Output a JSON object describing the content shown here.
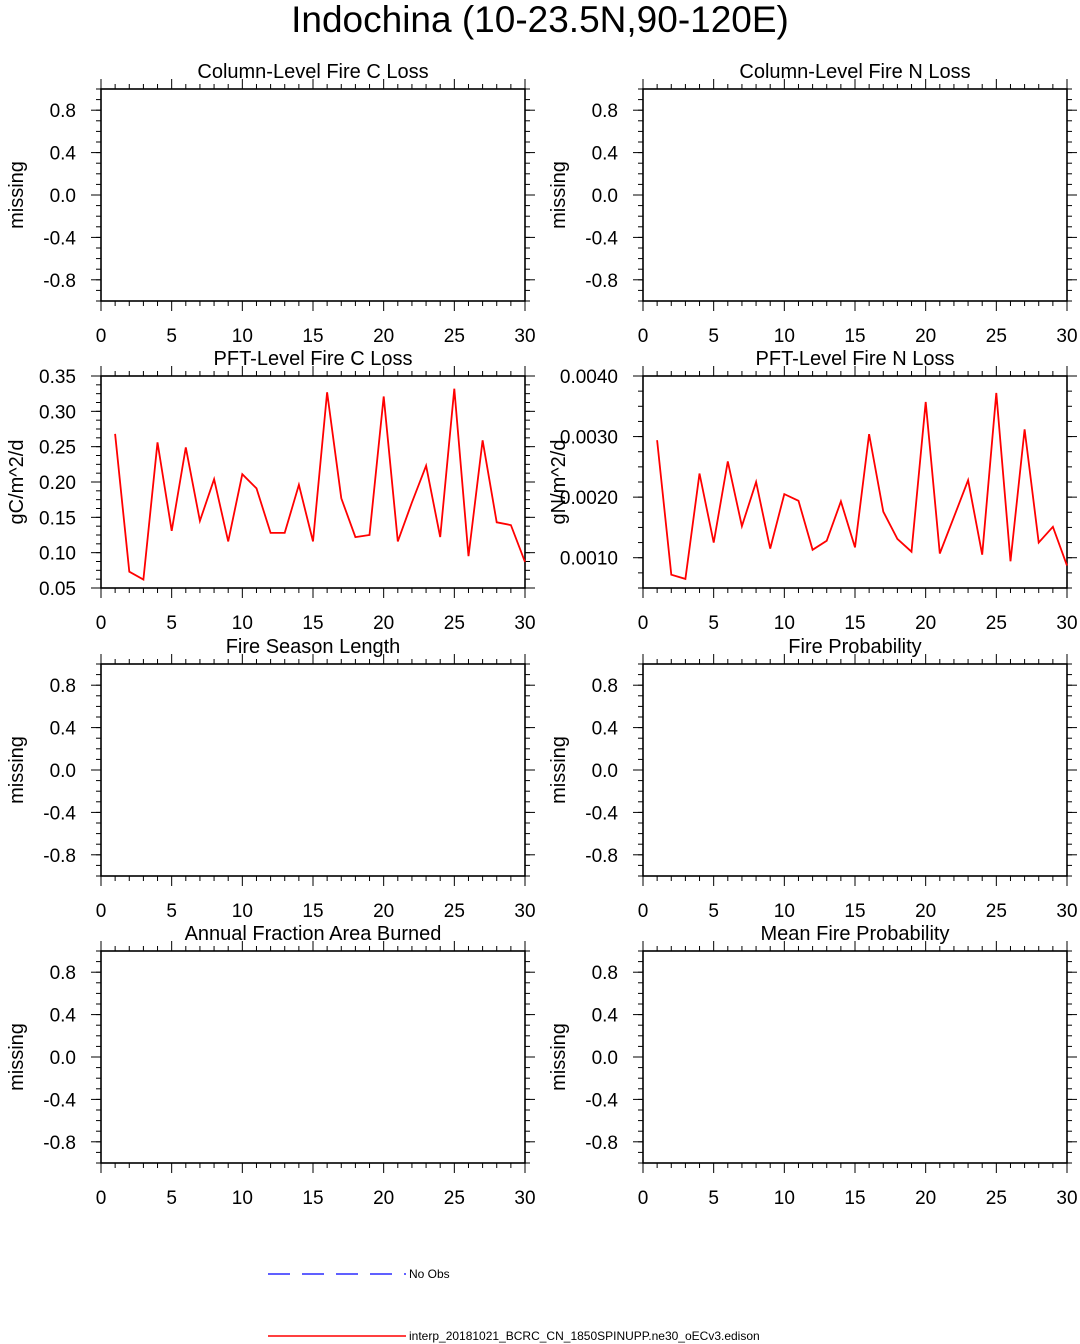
{
  "figure": {
    "title": "Indochina (10-23.5N,90-120E)"
  },
  "chart_data": [
    {
      "type": "line",
      "title": "Column-Level Fire C Loss",
      "ylabel": "missing",
      "xlim": [
        0,
        30
      ],
      "ylim": [
        -1,
        1
      ],
      "xticks": [
        0,
        5,
        10,
        15,
        20,
        25,
        30
      ],
      "xtick_labels": [
        "0",
        "5",
        "10",
        "15",
        "20",
        "25",
        "30"
      ],
      "yticks": [
        0.8,
        0.4,
        0.0,
        -0.4,
        -0.8
      ],
      "ytick_labels": [
        "0.8",
        "0.4",
        "0.0",
        "-0.4",
        "-0.8"
      ],
      "series": []
    },
    {
      "type": "line",
      "title": "Column-Level Fire N Loss",
      "ylabel": "missing",
      "xlim": [
        0,
        30
      ],
      "ylim": [
        -1,
        1
      ],
      "xticks": [
        0,
        5,
        10,
        15,
        20,
        25,
        30
      ],
      "xtick_labels": [
        "0",
        "5",
        "10",
        "15",
        "20",
        "25",
        "30"
      ],
      "yticks": [
        0.8,
        0.4,
        0.0,
        -0.4,
        -0.8
      ],
      "ytick_labels": [
        "0.8",
        "0.4",
        "0.0",
        "-0.4",
        "-0.8"
      ],
      "series": []
    },
    {
      "type": "line",
      "title": "PFT-Level Fire C Loss",
      "ylabel": "gC/m^2/d",
      "xlim": [
        0,
        30
      ],
      "ylim": [
        0.05,
        0.35
      ],
      "xticks": [
        0,
        5,
        10,
        15,
        20,
        25,
        30
      ],
      "xtick_labels": [
        "0",
        "5",
        "10",
        "15",
        "20",
        "25",
        "30"
      ],
      "yticks": [
        0.35,
        0.3,
        0.25,
        0.2,
        0.15,
        0.1,
        0.05
      ],
      "ytick_labels": [
        "0.35",
        "0.30",
        "0.25",
        "0.20",
        "0.15",
        "0.10",
        "0.05"
      ],
      "series": [
        {
          "color": "#ff0000",
          "x": [
            1,
            2,
            3,
            4,
            5,
            6,
            7,
            8,
            9,
            10,
            11,
            12,
            13,
            14,
            15,
            16,
            17,
            18,
            19,
            20,
            21,
            22,
            23,
            24,
            25,
            26,
            27,
            28,
            29,
            30
          ],
          "values": [
            0.268,
            0.073,
            0.062,
            0.256,
            0.131,
            0.249,
            0.145,
            0.204,
            0.116,
            0.211,
            0.191,
            0.128,
            0.128,
            0.196,
            0.116,
            0.327,
            0.177,
            0.122,
            0.125,
            0.321,
            0.116,
            0.171,
            0.223,
            0.122,
            0.332,
            0.095,
            0.259,
            0.143,
            0.139,
            0.087
          ]
        }
      ]
    },
    {
      "type": "line",
      "title": "PFT-Level Fire N Loss",
      "ylabel": "gN/m^2/d",
      "xlim": [
        0,
        30
      ],
      "ylim": [
        0.0005,
        0.004
      ],
      "xticks": [
        0,
        5,
        10,
        15,
        20,
        25,
        30
      ],
      "xtick_labels": [
        "0",
        "5",
        "10",
        "15",
        "20",
        "25",
        "30"
      ],
      "yticks": [
        0.004,
        0.003,
        0.002,
        0.001
      ],
      "ytick_labels": [
        "0.0040",
        "0.0030",
        "0.0020",
        "0.0010"
      ],
      "series": [
        {
          "color": "#ff0000",
          "x": [
            1,
            2,
            3,
            4,
            5,
            6,
            7,
            8,
            9,
            10,
            11,
            12,
            13,
            14,
            15,
            16,
            17,
            18,
            19,
            20,
            21,
            22,
            23,
            24,
            25,
            26,
            27,
            28,
            29,
            30
          ],
          "values": [
            0.00294,
            0.00072,
            0.00065,
            0.00239,
            0.00125,
            0.00259,
            0.00152,
            0.00225,
            0.00115,
            0.00205,
            0.00194,
            0.00113,
            0.00128,
            0.00193,
            0.00117,
            0.00304,
            0.00176,
            0.00131,
            0.0011,
            0.00357,
            0.00107,
            0.00167,
            0.00228,
            0.00105,
            0.00372,
            0.00094,
            0.00312,
            0.00125,
            0.00151,
            0.00087
          ]
        }
      ]
    },
    {
      "type": "line",
      "title": "Fire Season Length",
      "ylabel": "missing",
      "xlim": [
        0,
        30
      ],
      "ylim": [
        -1,
        1
      ],
      "xticks": [
        0,
        5,
        10,
        15,
        20,
        25,
        30
      ],
      "xtick_labels": [
        "0",
        "5",
        "10",
        "15",
        "20",
        "25",
        "30"
      ],
      "yticks": [
        0.8,
        0.4,
        0.0,
        -0.4,
        -0.8
      ],
      "ytick_labels": [
        "0.8",
        "0.4",
        "0.0",
        "-0.4",
        "-0.8"
      ],
      "series": []
    },
    {
      "type": "line",
      "title": "Fire Probability",
      "ylabel": "missing",
      "xlim": [
        0,
        30
      ],
      "ylim": [
        -1,
        1
      ],
      "xticks": [
        0,
        5,
        10,
        15,
        20,
        25,
        30
      ],
      "xtick_labels": [
        "0",
        "5",
        "10",
        "15",
        "20",
        "25",
        "30"
      ],
      "yticks": [
        0.8,
        0.4,
        0.0,
        -0.4,
        -0.8
      ],
      "ytick_labels": [
        "0.8",
        "0.4",
        "0.0",
        "-0.4",
        "-0.8"
      ],
      "series": []
    },
    {
      "type": "line",
      "title": "Annual Fraction Area Burned",
      "ylabel": "missing",
      "xlim": [
        0,
        30
      ],
      "ylim": [
        -1,
        1
      ],
      "xticks": [
        0,
        5,
        10,
        15,
        20,
        25,
        30
      ],
      "xtick_labels": [
        "0",
        "5",
        "10",
        "15",
        "20",
        "25",
        "30"
      ],
      "yticks": [
        0.8,
        0.4,
        0.0,
        -0.4,
        -0.8
      ],
      "ytick_labels": [
        "0.8",
        "0.4",
        "0.0",
        "-0.4",
        "-0.8"
      ],
      "series": []
    },
    {
      "type": "line",
      "title": "Mean Fire Probability",
      "ylabel": "missing",
      "xlim": [
        0,
        30
      ],
      "ylim": [
        -1,
        1
      ],
      "xticks": [
        0,
        5,
        10,
        15,
        20,
        25,
        30
      ],
      "xtick_labels": [
        "0",
        "5",
        "10",
        "15",
        "20",
        "25",
        "30"
      ],
      "yticks": [
        0.8,
        0.4,
        0.0,
        -0.4,
        -0.8
      ],
      "ytick_labels": [
        "0.8",
        "0.4",
        "0.0",
        "-0.4",
        "-0.8"
      ],
      "series": []
    }
  ],
  "legend": {
    "obs_label": "No Obs",
    "obs_color": "#0000ff",
    "model_label": "interp_20181021_BCRC_CN_1850SPINUPP.ne30_oECv3.edison",
    "model_color": "#ff0000"
  }
}
